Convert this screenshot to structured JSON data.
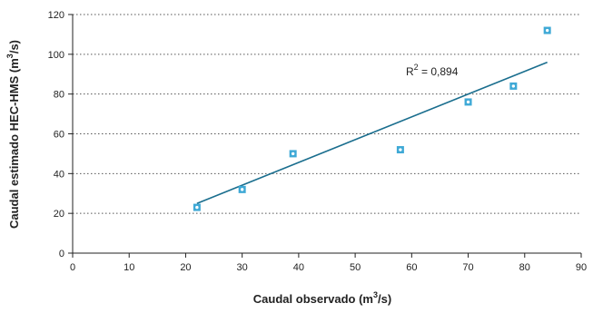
{
  "chart_data": {
    "type": "scatter",
    "x_label": {
      "prefix": "Caudal observado (m",
      "sup": "3",
      "suffix": "/s)"
    },
    "y_label": {
      "prefix": "Caudal estimado HEC-HMS (m",
      "sup": "3",
      "suffix": "/s)"
    },
    "xlim": [
      0,
      90
    ],
    "ylim": [
      0,
      120
    ],
    "x_ticks": [
      0,
      10,
      20,
      30,
      40,
      50,
      60,
      70,
      80,
      90
    ],
    "y_ticks": [
      0,
      20,
      40,
      60,
      80,
      100,
      120
    ],
    "grid": "horizontal dotted",
    "points": [
      {
        "x": 22,
        "y": 23
      },
      {
        "x": 30,
        "y": 32
      },
      {
        "x": 39,
        "y": 50
      },
      {
        "x": 58,
        "y": 52
      },
      {
        "x": 70,
        "y": 76
      },
      {
        "x": 78,
        "y": 84
      },
      {
        "x": 84,
        "y": 112
      }
    ],
    "trendline": {
      "x": [
        22,
        84
      ],
      "y": [
        25,
        96
      ]
    },
    "annotation": {
      "prefix": "R",
      "sup": "2",
      "suffix": " = 0,894"
    },
    "colors": {
      "marker": "#3fa9d6",
      "trendline": "#1a6e8e",
      "grid": "#555555",
      "axis": "#222222"
    }
  }
}
